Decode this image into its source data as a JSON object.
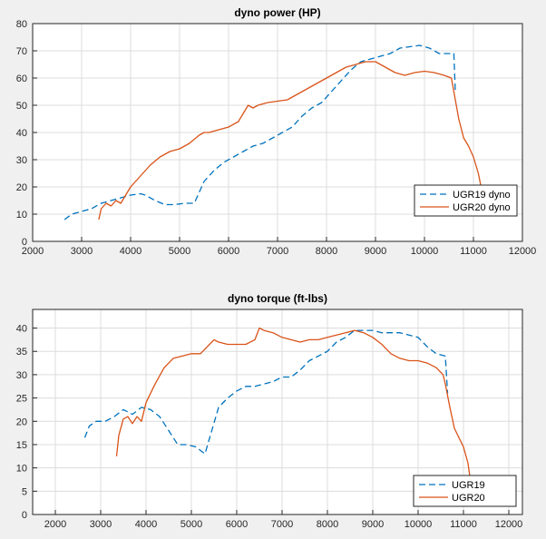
{
  "chart_data": [
    {
      "type": "line",
      "title": "dyno power (HP)",
      "xlabel": "",
      "ylabel": "",
      "xlim": [
        2000,
        12000
      ],
      "ylim": [
        0,
        80
      ],
      "xticks": [
        2000,
        3000,
        4000,
        5000,
        6000,
        7000,
        8000,
        9000,
        10000,
        11000,
        12000
      ],
      "yticks": [
        0,
        10,
        20,
        30,
        40,
        50,
        60,
        70,
        80
      ],
      "grid": true,
      "legend_position": "bottom-right",
      "series": [
        {
          "name": "UGR19 dyno",
          "color": "#0072BD",
          "dash": "dashed",
          "x": [
            2650,
            2800,
            3000,
            3200,
            3400,
            3600,
            3800,
            4000,
            4200,
            4300,
            4500,
            4700,
            4900,
            5100,
            5300,
            5500,
            5700,
            5900,
            6100,
            6300,
            6500,
            6700,
            6900,
            7100,
            7300,
            7500,
            7700,
            7900,
            8100,
            8300,
            8500,
            8700,
            8900,
            9100,
            9300,
            9500,
            9700,
            9900,
            10100,
            10300,
            10500,
            10600,
            10630
          ],
          "y": [
            8,
            10,
            11,
            12,
            14,
            15,
            16,
            17,
            17.5,
            17,
            15,
            13.5,
            13.5,
            14,
            14,
            22,
            26,
            29,
            31,
            33,
            35,
            36,
            38,
            40,
            42,
            46,
            49,
            51,
            55,
            59,
            63,
            66,
            67,
            68,
            69,
            71,
            71.5,
            72,
            71,
            69,
            69,
            69,
            55
          ]
        },
        {
          "name": "UGR20 dyno",
          "color": "#D95319",
          "dash": "solid",
          "x": [
            3350,
            3400,
            3500,
            3600,
            3700,
            3800,
            3900,
            4000,
            4200,
            4400,
            4600,
            4800,
            5000,
            5200,
            5400,
            5500,
            5600,
            5800,
            6000,
            6200,
            6300,
            6400,
            6500,
            6600,
            6800,
            7000,
            7200,
            7400,
            7600,
            7800,
            8000,
            8200,
            8400,
            8600,
            8800,
            9000,
            9200,
            9400,
            9600,
            9800,
            10000,
            10200,
            10400,
            10550,
            10600,
            10700,
            10800,
            10900,
            11000,
            11100,
            11200
          ],
          "y": [
            8,
            12,
            14,
            13,
            15,
            14,
            17,
            20,
            24,
            28,
            31,
            33,
            34,
            36,
            39,
            40,
            40,
            41,
            42,
            44,
            47,
            50,
            49,
            50,
            51,
            51.5,
            52,
            54,
            56,
            58,
            60,
            62,
            64,
            65,
            66,
            66,
            64,
            62,
            61,
            62,
            62.5,
            62,
            61,
            60,
            55,
            45,
            38,
            35,
            31,
            25,
            16
          ]
        }
      ]
    },
    {
      "type": "line",
      "title": "dyno torque (ft-lbs)",
      "xlabel": "",
      "ylabel": "",
      "xlim": [
        1500,
        12300
      ],
      "ylim": [
        0,
        44
      ],
      "xticks": [
        2000,
        3000,
        4000,
        5000,
        6000,
        7000,
        8000,
        9000,
        10000,
        11000,
        12000
      ],
      "yticks": [
        0,
        5,
        10,
        15,
        20,
        25,
        30,
        35,
        40
      ],
      "grid": true,
      "legend_position": "bottom-right",
      "series": [
        {
          "name": "UGR19",
          "color": "#0072BD",
          "dash": "dashed",
          "x": [
            2650,
            2750,
            2900,
            3100,
            3300,
            3500,
            3700,
            3900,
            4100,
            4300,
            4500,
            4700,
            4900,
            5100,
            5300,
            5450,
            5600,
            5800,
            6000,
            6200,
            6400,
            6600,
            6800,
            7000,
            7200,
            7400,
            7600,
            7800,
            8000,
            8200,
            8400,
            8600,
            8800,
            9000,
            9200,
            9400,
            9600,
            9800,
            10000,
            10200,
            10400,
            10600,
            10650
          ],
          "y": [
            16.5,
            19,
            20,
            20,
            21,
            22.5,
            21.5,
            23,
            22.5,
            21,
            18,
            15,
            15,
            14.5,
            13,
            18,
            23,
            25,
            26.5,
            27.5,
            27.5,
            28,
            28.5,
            29.5,
            29.5,
            31,
            33,
            34,
            35,
            37,
            38,
            39.5,
            39.5,
            39.5,
            39,
            39,
            39,
            38.5,
            38,
            36,
            34.5,
            34,
            26
          ]
        },
        {
          "name": "UGR20",
          "color": "#D95319",
          "dash": "solid",
          "x": [
            3350,
            3400,
            3500,
            3600,
            3700,
            3800,
            3900,
            4000,
            4200,
            4400,
            4600,
            4800,
            5000,
            5200,
            5400,
            5500,
            5600,
            5800,
            6000,
            6200,
            6400,
            6500,
            6600,
            6800,
            7000,
            7200,
            7400,
            7600,
            7800,
            8000,
            8200,
            8400,
            8600,
            8800,
            9000,
            9200,
            9400,
            9600,
            9800,
            10000,
            10200,
            10400,
            10550,
            10600,
            10700,
            10800,
            10900,
            11000,
            11100,
            11150
          ],
          "y": [
            12.5,
            17,
            20.5,
            21,
            19.5,
            21,
            20,
            24,
            28,
            31.5,
            33.5,
            34,
            34.5,
            34.5,
            36.5,
            37.5,
            37,
            36.5,
            36.5,
            36.5,
            37.5,
            40,
            39.5,
            39,
            38,
            37.5,
            37,
            37.5,
            37.5,
            38,
            38.5,
            39,
            39.5,
            39,
            38,
            36.5,
            34.5,
            33.5,
            33,
            33,
            32.5,
            31.5,
            30,
            28,
            23,
            18.5,
            16.5,
            14.5,
            11,
            7.5
          ]
        }
      ]
    }
  ]
}
